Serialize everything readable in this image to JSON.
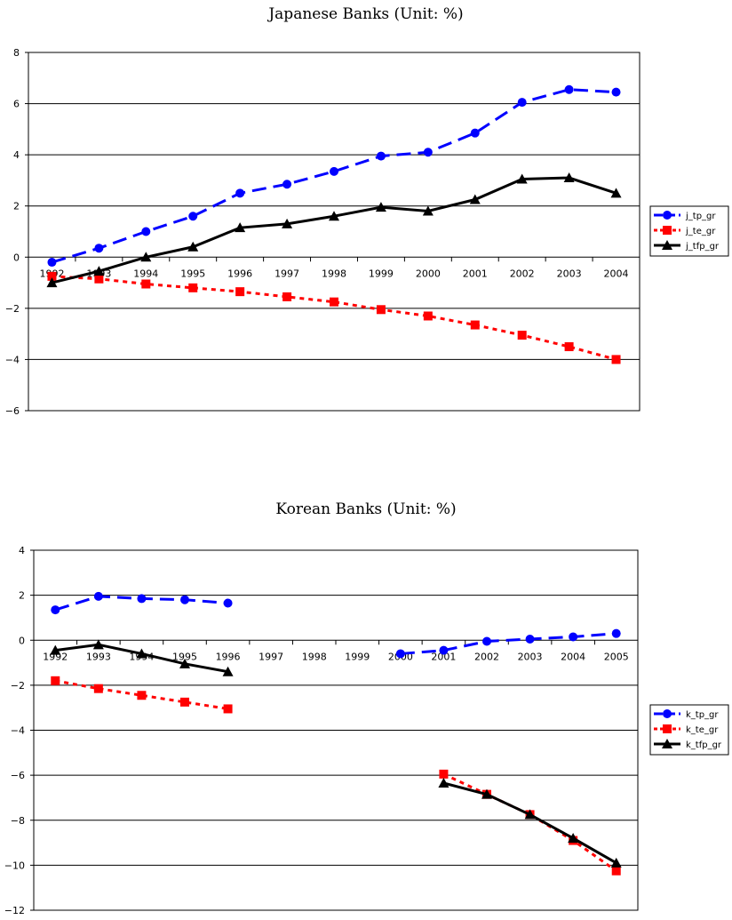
{
  "chart_data": [
    {
      "type": "line",
      "title": "Japanese Banks (Unit: %)",
      "categories": [
        "1992",
        "1993",
        "1994",
        "1995",
        "1996",
        "1997",
        "1998",
        "1999",
        "2000",
        "2001",
        "2002",
        "2003",
        "2004"
      ],
      "ylim": [
        -6,
        8
      ],
      "yticks": [
        "8",
        "6",
        "4",
        "2",
        "0",
        "-2",
        "-4",
        "-6"
      ],
      "grid": true,
      "legend": "right",
      "series": [
        {
          "name": "j_tp_gr",
          "color": "#0000ff",
          "marker": "circle",
          "dash": "dash",
          "values": [
            -0.2,
            0.35,
            1.0,
            1.6,
            2.5,
            2.85,
            3.35,
            3.95,
            4.1,
            4.85,
            6.05,
            6.55,
            6.45
          ]
        },
        {
          "name": "j_te_gr",
          "color": "#ff0000",
          "marker": "square",
          "dash": "dot",
          "values": [
            -0.75,
            -0.85,
            -1.05,
            -1.2,
            -1.35,
            -1.55,
            -1.75,
            -2.05,
            -2.3,
            -2.65,
            -3.05,
            -3.5,
            -4.0
          ]
        },
        {
          "name": "j_tfp_gr",
          "color": "#000000",
          "marker": "triangle",
          "dash": "solid",
          "values": [
            -1.0,
            -0.55,
            0.0,
            0.4,
            1.15,
            1.3,
            1.6,
            1.95,
            1.8,
            2.25,
            3.05,
            3.1,
            2.5
          ]
        }
      ]
    },
    {
      "type": "line",
      "title": "Korean Banks (Unit: %)",
      "categories": [
        "1992",
        "1993",
        "1994",
        "1995",
        "1996",
        "1997",
        "1998",
        "1999",
        "2000",
        "2001",
        "2002",
        "2003",
        "2004",
        "2005"
      ],
      "ylim": [
        -12,
        4
      ],
      "yticks": [
        "4",
        "2",
        "0",
        "-2",
        "-4",
        "-6",
        "-8",
        "-10",
        "-12"
      ],
      "grid": true,
      "legend": "right",
      "series": [
        {
          "name": "k_tp_gr",
          "color": "#0000ff",
          "marker": "circle",
          "dash": "dash",
          "values": [
            1.35,
            1.95,
            1.85,
            1.8,
            1.65,
            null,
            null,
            null,
            -0.6,
            -0.45,
            -0.05,
            0.05,
            0.15,
            0.3
          ]
        },
        {
          "name": "k_te_gr",
          "color": "#ff0000",
          "marker": "square",
          "dash": "dot",
          "values": [
            -1.8,
            -2.15,
            -2.45,
            -2.75,
            -3.05,
            null,
            null,
            null,
            null,
            -5.95,
            -6.85,
            -7.75,
            -8.9,
            -10.25
          ]
        },
        {
          "name": "k_tfp_gr",
          "color": "#000000",
          "marker": "triangle",
          "dash": "solid",
          "values": [
            -0.45,
            -0.2,
            -0.6,
            -1.05,
            -1.4,
            null,
            null,
            null,
            null,
            -6.35,
            -6.85,
            -7.75,
            -8.8,
            -9.9
          ]
        }
      ]
    }
  ]
}
